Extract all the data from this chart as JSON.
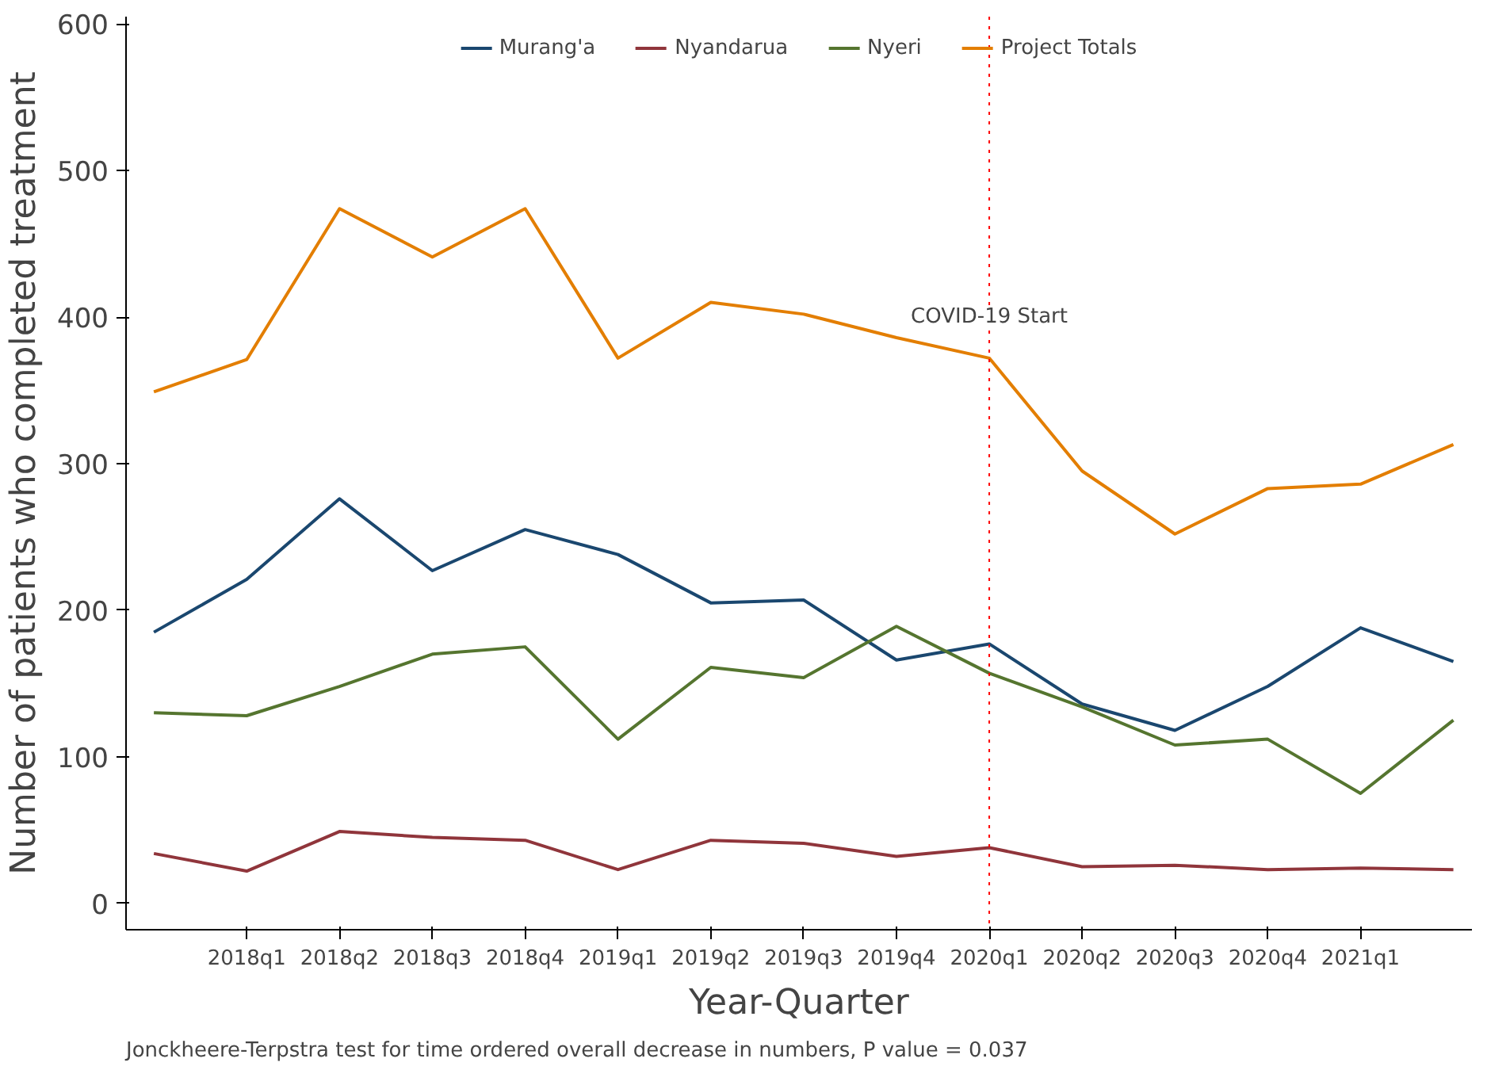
{
  "chart_data": {
    "type": "line",
    "xlabel": "Year-Quarter",
    "ylabel": "Number of patients who completed treatment",
    "categories": [
      null,
      "2018q1",
      "2018q2",
      "2018q3",
      "2018q4",
      "2019q1",
      "2019q2",
      "2019q3",
      "2019q4",
      "2020q1",
      "2020q2",
      "2020q3",
      "2020q4",
      "2021q1",
      null
    ],
    "series": [
      {
        "name": "Murang'a",
        "color": "#1a476f",
        "values": [
          185,
          221,
          276,
          227,
          255,
          238,
          205,
          207,
          166,
          177,
          136,
          118,
          148,
          188,
          165
        ]
      },
      {
        "name": "Nyandarua",
        "color": "#90353b",
        "values": [
          34,
          22,
          49,
          45,
          43,
          23,
          43,
          41,
          32,
          38,
          25,
          26,
          23,
          24,
          23
        ]
      },
      {
        "name": "Nyeri",
        "color": "#55752f",
        "values": [
          130,
          128,
          148,
          170,
          175,
          112,
          161,
          154,
          189,
          157,
          134,
          108,
          112,
          75,
          125
        ]
      },
      {
        "name": "Project Totals",
        "color": "#e37e00",
        "values": [
          349,
          371,
          474,
          441,
          474,
          372,
          410,
          402,
          386,
          372,
          295,
          252,
          283,
          286,
          313
        ]
      }
    ],
    "ylim": [
      -18,
      605
    ],
    "yticks": [
      0,
      100,
      200,
      300,
      400,
      500,
      600
    ],
    "ref_lines": [
      {
        "axis": "x",
        "value": "2020q1",
        "label": "COVID-19 Start",
        "color": "#ff0000",
        "line_style": "dotted"
      }
    ],
    "annotations": [
      "Jonckheere-Terpstra test for time ordered overall decrease in numbers, P value = 0.037"
    ],
    "legend": "top",
    "grid": false,
    "marker": "none",
    "line_style": "solid"
  }
}
